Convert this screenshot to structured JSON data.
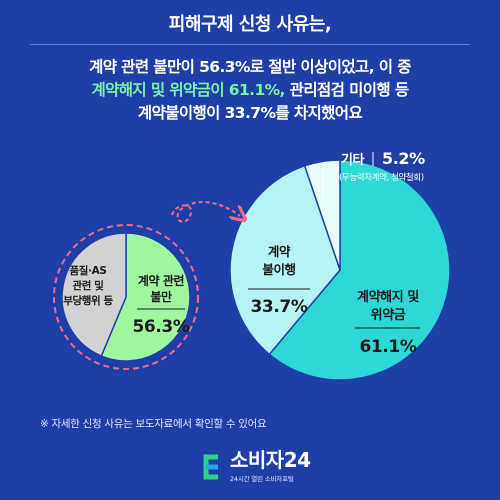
{
  "header": {
    "title": "피해구제 신청 사유는,",
    "line1": "계약 관련 불만이 56.3%로 절반 이상이었고, 이 중",
    "line2_highlight": "계약해지 및 위약금이 61.1%,",
    "line2_rest": " 관리점검 미이행 등",
    "line3": "계약불이행이 33.7%를 차지했어요"
  },
  "chart_data": [
    {
      "type": "pie",
      "slices": [
        {
          "label": "계약 관련 불만",
          "value": 56.3,
          "value_label": "56.3%",
          "color": "#9ef79d"
        },
        {
          "label": "품질·AS 관련 및 부당행위 등",
          "value": 43.7,
          "value_label": "",
          "color": "#d2d2d2"
        }
      ]
    },
    {
      "type": "pie",
      "slices": [
        {
          "label": "계약해지 및 위약금",
          "value": 61.1,
          "value_label": "61.1%",
          "color": "#2dd8d6"
        },
        {
          "label": "계약 불이행",
          "value": 33.7,
          "value_label": "33.7%",
          "color": "#b6f3f4"
        },
        {
          "label": "기타",
          "value": 5.2,
          "value_label": "5.2%",
          "note": "(무능력자계약, 청약철회)",
          "color": "#e7fbfb"
        }
      ]
    }
  ],
  "footnote": "※ 자세한 신청 사유는 보도자료에서 확인할 수 있어요",
  "brand": {
    "name": "소비자24",
    "tagline": "24시간 열린 소비자포털"
  }
}
